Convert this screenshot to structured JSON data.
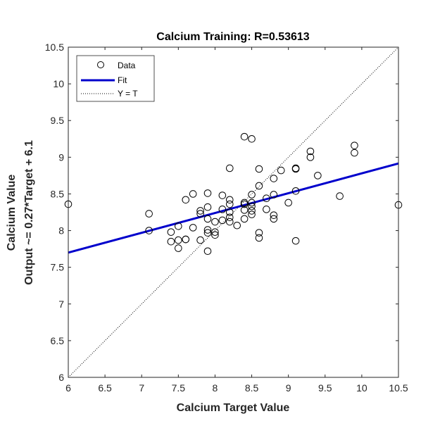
{
  "chart_data": {
    "type": "scatter",
    "title": "Calcium Training: R=0.53613",
    "xlabel": "Calcium Target Value",
    "ylabel_line1": "Calcium Value",
    "ylabel_line2": "Output ~= 0.27*Target + 6.1",
    "xlim": [
      6,
      10.5
    ],
    "ylim": [
      6,
      10.5
    ],
    "xticks": [
      "6",
      "6.5",
      "7",
      "7.5",
      "8",
      "8.5",
      "9",
      "9.5",
      "10",
      "10.5"
    ],
    "yticks": [
      "6",
      "6.5",
      "7",
      "7.5",
      "8",
      "8.5",
      "9",
      "9.5",
      "10",
      "10.5"
    ],
    "grid": false,
    "legend_position": "top-left",
    "legend": [
      "Data",
      "Fit",
      "Y = T"
    ],
    "fit": {
      "slope": 0.27,
      "intercept": 6.08,
      "color": "#0000cc"
    },
    "identity_line_color": "#000000",
    "series": [
      {
        "name": "Data",
        "marker": "open-circle",
        "points": [
          [
            6.0,
            8.36
          ],
          [
            10.5,
            8.35
          ],
          [
            7.1,
            8.23
          ],
          [
            7.1,
            8.0
          ],
          [
            7.4,
            7.98
          ],
          [
            7.4,
            7.85
          ],
          [
            7.5,
            8.06
          ],
          [
            7.5,
            7.87
          ],
          [
            7.5,
            7.76
          ],
          [
            7.6,
            7.88
          ],
          [
            7.6,
            7.88
          ],
          [
            7.6,
            8.42
          ],
          [
            7.7,
            8.5
          ],
          [
            7.7,
            8.04
          ],
          [
            7.8,
            8.27
          ],
          [
            7.8,
            8.23
          ],
          [
            7.8,
            7.87
          ],
          [
            7.9,
            8.51
          ],
          [
            7.9,
            8.32
          ],
          [
            7.9,
            8.16
          ],
          [
            7.9,
            8.01
          ],
          [
            7.9,
            7.97
          ],
          [
            7.9,
            7.72
          ],
          [
            8.0,
            8.12
          ],
          [
            8.0,
            7.98
          ],
          [
            8.0,
            7.94
          ],
          [
            8.1,
            8.48
          ],
          [
            8.1,
            8.29
          ],
          [
            8.1,
            8.14
          ],
          [
            8.2,
            8.42
          ],
          [
            8.2,
            8.36
          ],
          [
            8.2,
            8.25
          ],
          [
            8.2,
            8.18
          ],
          [
            8.2,
            8.12
          ],
          [
            8.2,
            8.85
          ],
          [
            8.3,
            8.07
          ],
          [
            8.4,
            9.28
          ],
          [
            8.4,
            8.38
          ],
          [
            8.4,
            8.36
          ],
          [
            8.4,
            8.28
          ],
          [
            8.4,
            8.16
          ],
          [
            8.5,
            9.25
          ],
          [
            8.5,
            8.49
          ],
          [
            8.5,
            8.38
          ],
          [
            8.5,
            8.33
          ],
          [
            8.5,
            8.27
          ],
          [
            8.5,
            8.22
          ],
          [
            8.6,
            8.84
          ],
          [
            8.6,
            8.61
          ],
          [
            8.6,
            7.97
          ],
          [
            8.6,
            7.9
          ],
          [
            8.7,
            8.44
          ],
          [
            8.7,
            8.29
          ],
          [
            8.8,
            8.71
          ],
          [
            8.8,
            8.49
          ],
          [
            8.8,
            8.21
          ],
          [
            8.8,
            8.16
          ],
          [
            8.9,
            8.82
          ],
          [
            9.0,
            8.38
          ],
          [
            9.1,
            8.85
          ],
          [
            9.1,
            8.84
          ],
          [
            9.1,
            8.54
          ],
          [
            9.1,
            7.86
          ],
          [
            9.3,
            9.08
          ],
          [
            9.3,
            9.0
          ],
          [
            9.4,
            8.75
          ],
          [
            9.7,
            8.47
          ],
          [
            9.9,
            9.16
          ],
          [
            9.9,
            9.06
          ]
        ]
      }
    ]
  }
}
